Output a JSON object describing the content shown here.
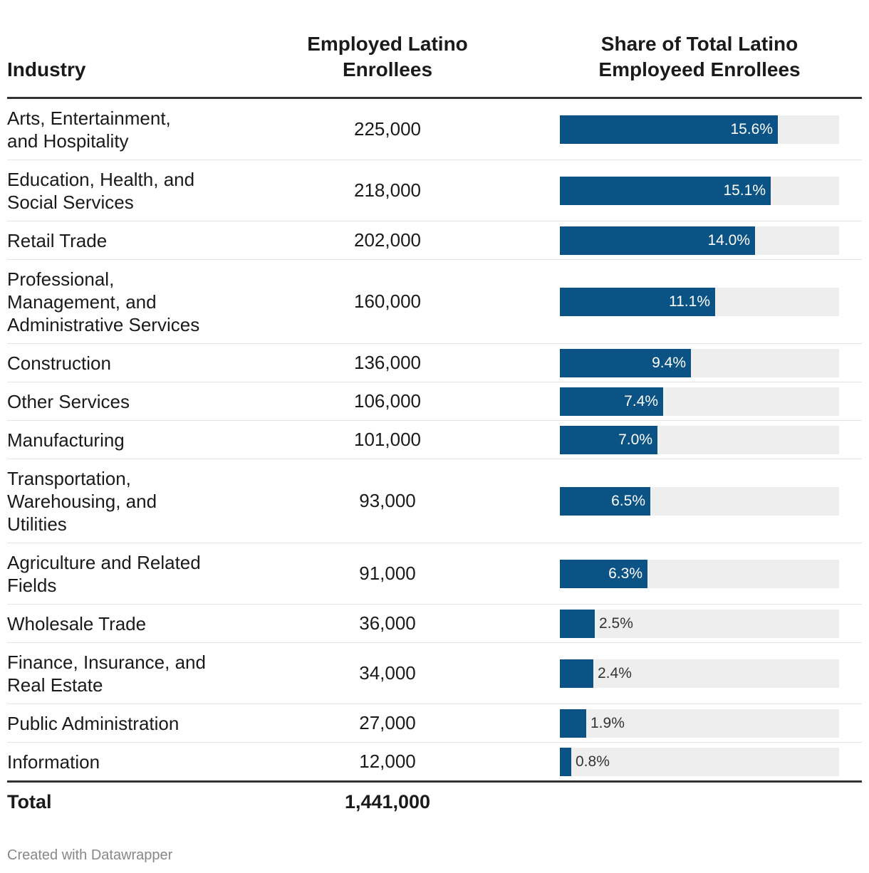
{
  "chart_data": {
    "type": "table",
    "columns": [
      "Industry",
      "Employed Latino Enrollees",
      "Share of Total Latino Employeed Enrollees"
    ],
    "rows": [
      {
        "industry": "Arts, Entertainment, and Hospitality",
        "lines": [
          "Arts, Entertainment,",
          "and Hospitality"
        ],
        "count": "225,000",
        "share": 15.6,
        "share_label": "15.6%"
      },
      {
        "industry": "Education, Health, and Social Services",
        "lines": [
          "Education, Health, and",
          "Social Services"
        ],
        "count": "218,000",
        "share": 15.1,
        "share_label": "15.1%"
      },
      {
        "industry": "Retail Trade",
        "lines": [
          "Retail Trade"
        ],
        "count": "202,000",
        "share": 14.0,
        "share_label": "14.0%"
      },
      {
        "industry": "Professional, Management, and Administrative Services",
        "lines": [
          "Professional,",
          "Management, and",
          "Administrative Services"
        ],
        "count": "160,000",
        "share": 11.1,
        "share_label": "11.1%"
      },
      {
        "industry": "Construction",
        "lines": [
          "Construction"
        ],
        "count": "136,000",
        "share": 9.4,
        "share_label": "9.4%"
      },
      {
        "industry": "Other Services",
        "lines": [
          "Other Services"
        ],
        "count": "106,000",
        "share": 7.4,
        "share_label": "7.4%"
      },
      {
        "industry": "Manufacturing",
        "lines": [
          "Manufacturing"
        ],
        "count": "101,000",
        "share": 7.0,
        "share_label": "7.0%"
      },
      {
        "industry": "Transportation, Warehousing, and Utilities",
        "lines": [
          "Transportation,",
          "Warehousing, and",
          "Utilities"
        ],
        "count": "93,000",
        "share": 6.5,
        "share_label": "6.5%"
      },
      {
        "industry": "Agriculture and Related Fields",
        "lines": [
          "Agriculture and Related",
          "Fields"
        ],
        "count": "91,000",
        "share": 6.3,
        "share_label": "6.3%"
      },
      {
        "industry": "Wholesale Trade",
        "lines": [
          "Wholesale Trade"
        ],
        "count": "36,000",
        "share": 2.5,
        "share_label": "2.5%"
      },
      {
        "industry": "Finance, Insurance, and Real Estate",
        "lines": [
          "Finance, Insurance, and",
          "Real Estate"
        ],
        "count": "34,000",
        "share": 2.4,
        "share_label": "2.4%"
      },
      {
        "industry": "Public Administration",
        "lines": [
          "Public Administration"
        ],
        "count": "27,000",
        "share": 1.9,
        "share_label": "1.9%"
      },
      {
        "industry": "Information",
        "lines": [
          "Information"
        ],
        "count": "12,000",
        "share": 0.8,
        "share_label": "0.8%"
      }
    ],
    "share_max": 20,
    "total": {
      "label": "Total",
      "count": "1,441,000"
    }
  },
  "header": {
    "industry": "Industry",
    "count_line1": "Employed Latino",
    "count_line2": "Enrollees",
    "share_line1": "Share of Total Latino",
    "share_line2": "Employeed Enrollees"
  },
  "total": {
    "label": "Total",
    "value": "1,441,000"
  },
  "footer": {
    "credit": "Created with Datawrapper"
  },
  "colors": {
    "bar": "#0b5384",
    "track": "#eeeeee"
  }
}
